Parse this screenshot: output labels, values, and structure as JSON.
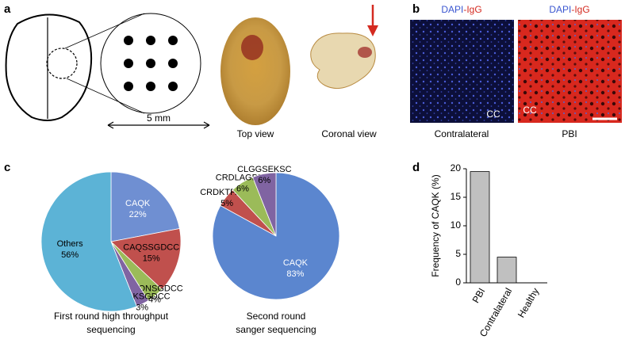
{
  "panel_labels": [
    "a",
    "b",
    "c",
    "d"
  ],
  "panel_a": {
    "scale": "5 mm",
    "photos": [
      "Top view",
      "Coronal view"
    ]
  },
  "panel_b": {
    "images": [
      {
        "stain": [
          "DAPI",
          "-IgG"
        ],
        "region": "CC",
        "caption": "Contralateral"
      },
      {
        "stain": [
          "DAPI",
          "-IgG"
        ],
        "region": "CC",
        "caption": "PBI"
      }
    ]
  },
  "chart_data": [
    {
      "type": "pie",
      "caption": [
        "First round high throughput",
        "sequencing"
      ],
      "categories": [
        "CAQK",
        "CAQSSGDCC",
        "CAQNSGDCC",
        "CAQKSGDCC",
        "Others"
      ],
      "values": [
        22,
        15,
        4,
        3,
        56
      ],
      "value_labels": [
        "22%",
        "15%",
        "4%",
        "3%",
        "56%"
      ],
      "colors": [
        "#6f8fd2",
        "#c0504d",
        "#9bbb59",
        "#8064a2",
        "#5cb3d6"
      ]
    },
    {
      "type": "pie",
      "caption": [
        "Second round",
        "sanger sequencing"
      ],
      "categories": [
        "CAQK",
        "CRDKTPARC",
        "CRDLAGDTC",
        "CLGGSEKSC"
      ],
      "values": [
        83,
        5,
        6,
        6
      ],
      "value_labels": [
        "83%",
        "5%",
        "6%",
        "6%"
      ],
      "colors": [
        "#5b86cf",
        "#c0504d",
        "#9bbb59",
        "#8064a2"
      ]
    },
    {
      "type": "bar",
      "y_label": "Frequency of CAQK (%)",
      "categories": [
        "PBI",
        "Contralateral",
        "Healthy"
      ],
      "values": [
        19.5,
        4.5,
        0
      ],
      "color": "#c0c0c0",
      "ylim": [
        0,
        20
      ],
      "yticks": [
        0,
        5,
        10,
        15,
        20
      ]
    }
  ]
}
